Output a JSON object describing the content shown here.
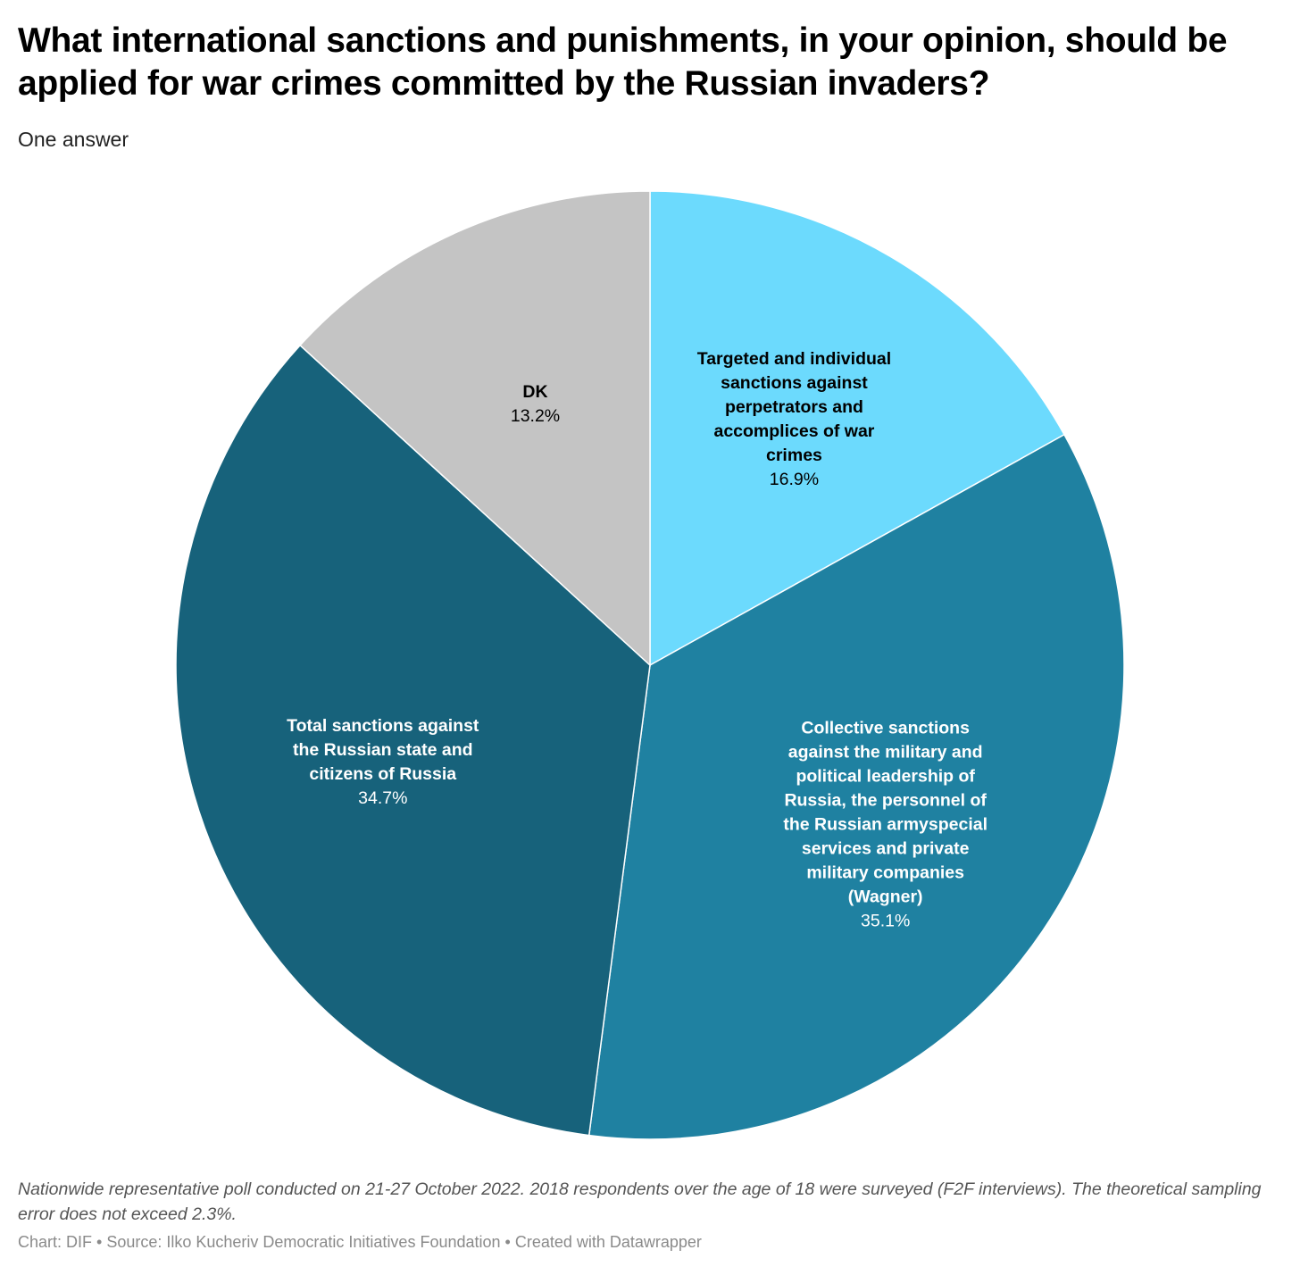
{
  "title": "What international sanctions and punishments, in your opinion, should be applied for war crimes committed by the Russian invaders?",
  "subtitle": "One answer",
  "chart_data": {
    "type": "pie",
    "title": "What international sanctions and punishments, in your opinion, should be applied for war crimes committed by the Russian invaders?",
    "slices": [
      {
        "label": "Targeted and individual sanctions against perpetrators and accomplices of war crimes",
        "value": 16.9,
        "display": "16.9%",
        "color": "#6cdafd",
        "text_color": "#000000"
      },
      {
        "label": "Collective sanctions against the military and political leadership of Russia, the personnel of the Russian armyspecial services and private military companies (Wagner)",
        "value": 35.1,
        "display": "35.1%",
        "color": "#1f81a1",
        "text_color": "#ffffff"
      },
      {
        "label": "Total sanctions against the Russian state and citizens of Russia",
        "value": 34.7,
        "display": "34.7%",
        "color": "#17627b",
        "text_color": "#ffffff"
      },
      {
        "label": "DK",
        "value": 13.2,
        "display": "13.2%",
        "color": "#c4c4c4",
        "text_color": "#000000"
      }
    ]
  },
  "notes": "Nationwide representative poll conducted on 21-27 October 2022. 2018 respondents over the age of 18 were surveyed (F2F interviews). The theoretical sampling error does not exceed 2.3%.",
  "byline": "Chart: DIF • Source: Ilko Kucheriv Democratic Initiatives Foundation • Created with Datawrapper"
}
